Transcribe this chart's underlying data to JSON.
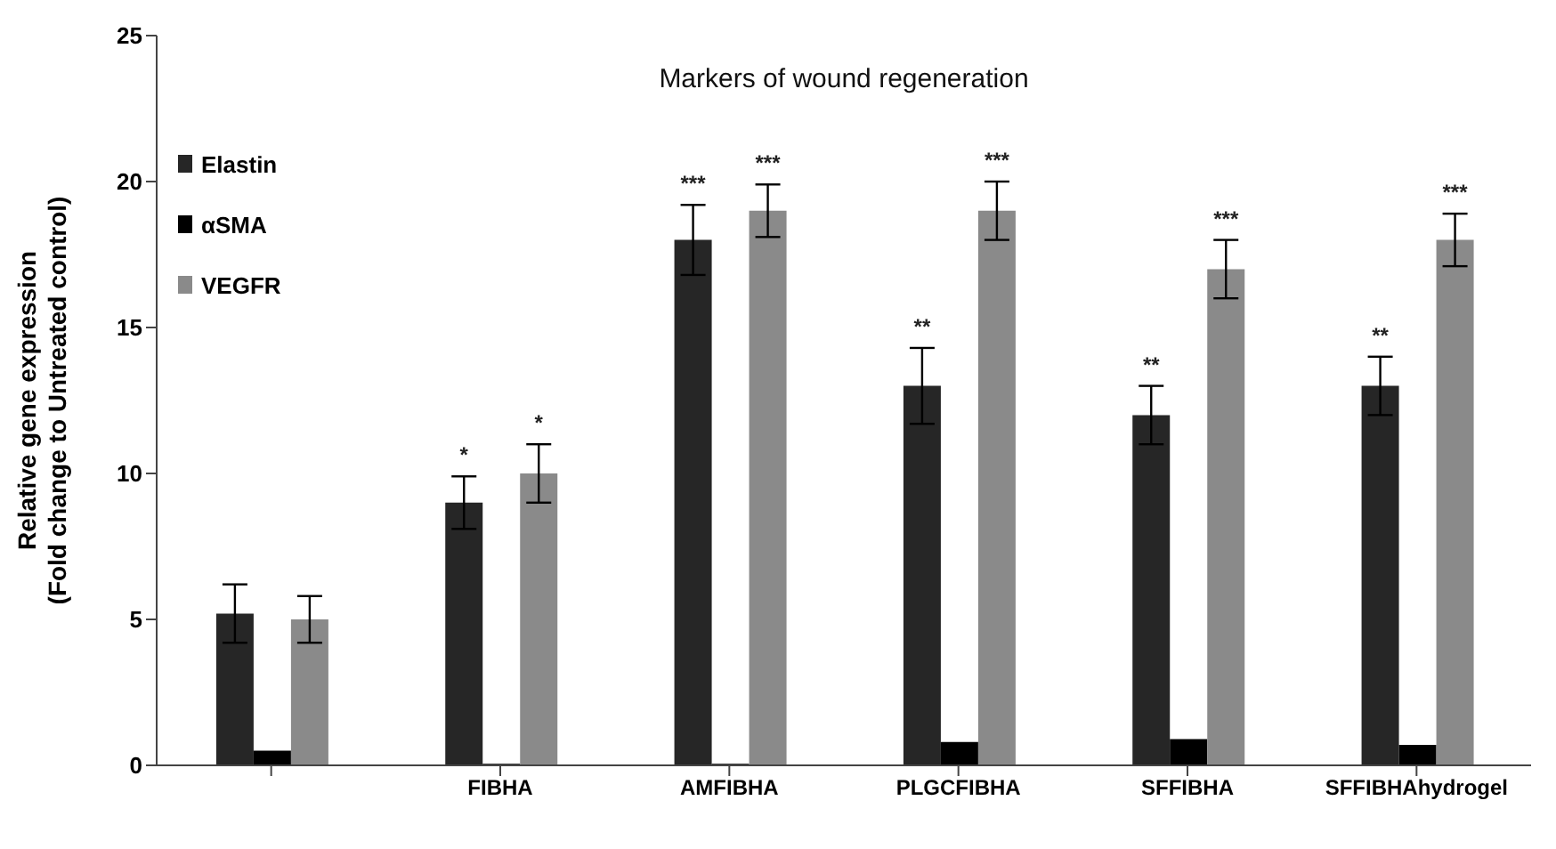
{
  "chart_data": {
    "type": "bar",
    "title": "Markers of wound regeneration",
    "ylabel": "Relative gene expression\n(Fold change to Untreated control)",
    "categories": [
      null,
      "FIBHA",
      "AMFIBHA",
      "PLGCFIBHA",
      "SFFIBHA",
      "SFFIBHAhydrogel"
    ],
    "series": [
      {
        "name": "Elastin",
        "color": "#262626",
        "values": [
          5.2,
          9,
          18,
          13,
          12,
          13
        ],
        "errors": [
          1,
          0.9,
          1.2,
          1.3,
          1,
          1
        ],
        "value_labels": [
          null,
          "*",
          "***",
          "**",
          "**",
          "**"
        ]
      },
      {
        "name": "αSMA",
        "color": "#000000",
        "values": [
          0.5,
          0.05,
          0.05,
          0.8,
          0.9,
          0.7
        ]
      },
      {
        "name": "VEGFR",
        "color": "#8a8a8a",
        "values": [
          5,
          10,
          19,
          19,
          17,
          18
        ],
        "errors": [
          0.8,
          1,
          0.9,
          1,
          1,
          0.9
        ],
        "value_labels": [
          null,
          "*",
          "***",
          "***",
          "***",
          "***"
        ]
      }
    ],
    "ylim": [
      0,
      25
    ],
    "yticks": [
      0,
      5,
      10,
      15,
      20,
      25
    ],
    "grid": false,
    "legend": "top left"
  }
}
